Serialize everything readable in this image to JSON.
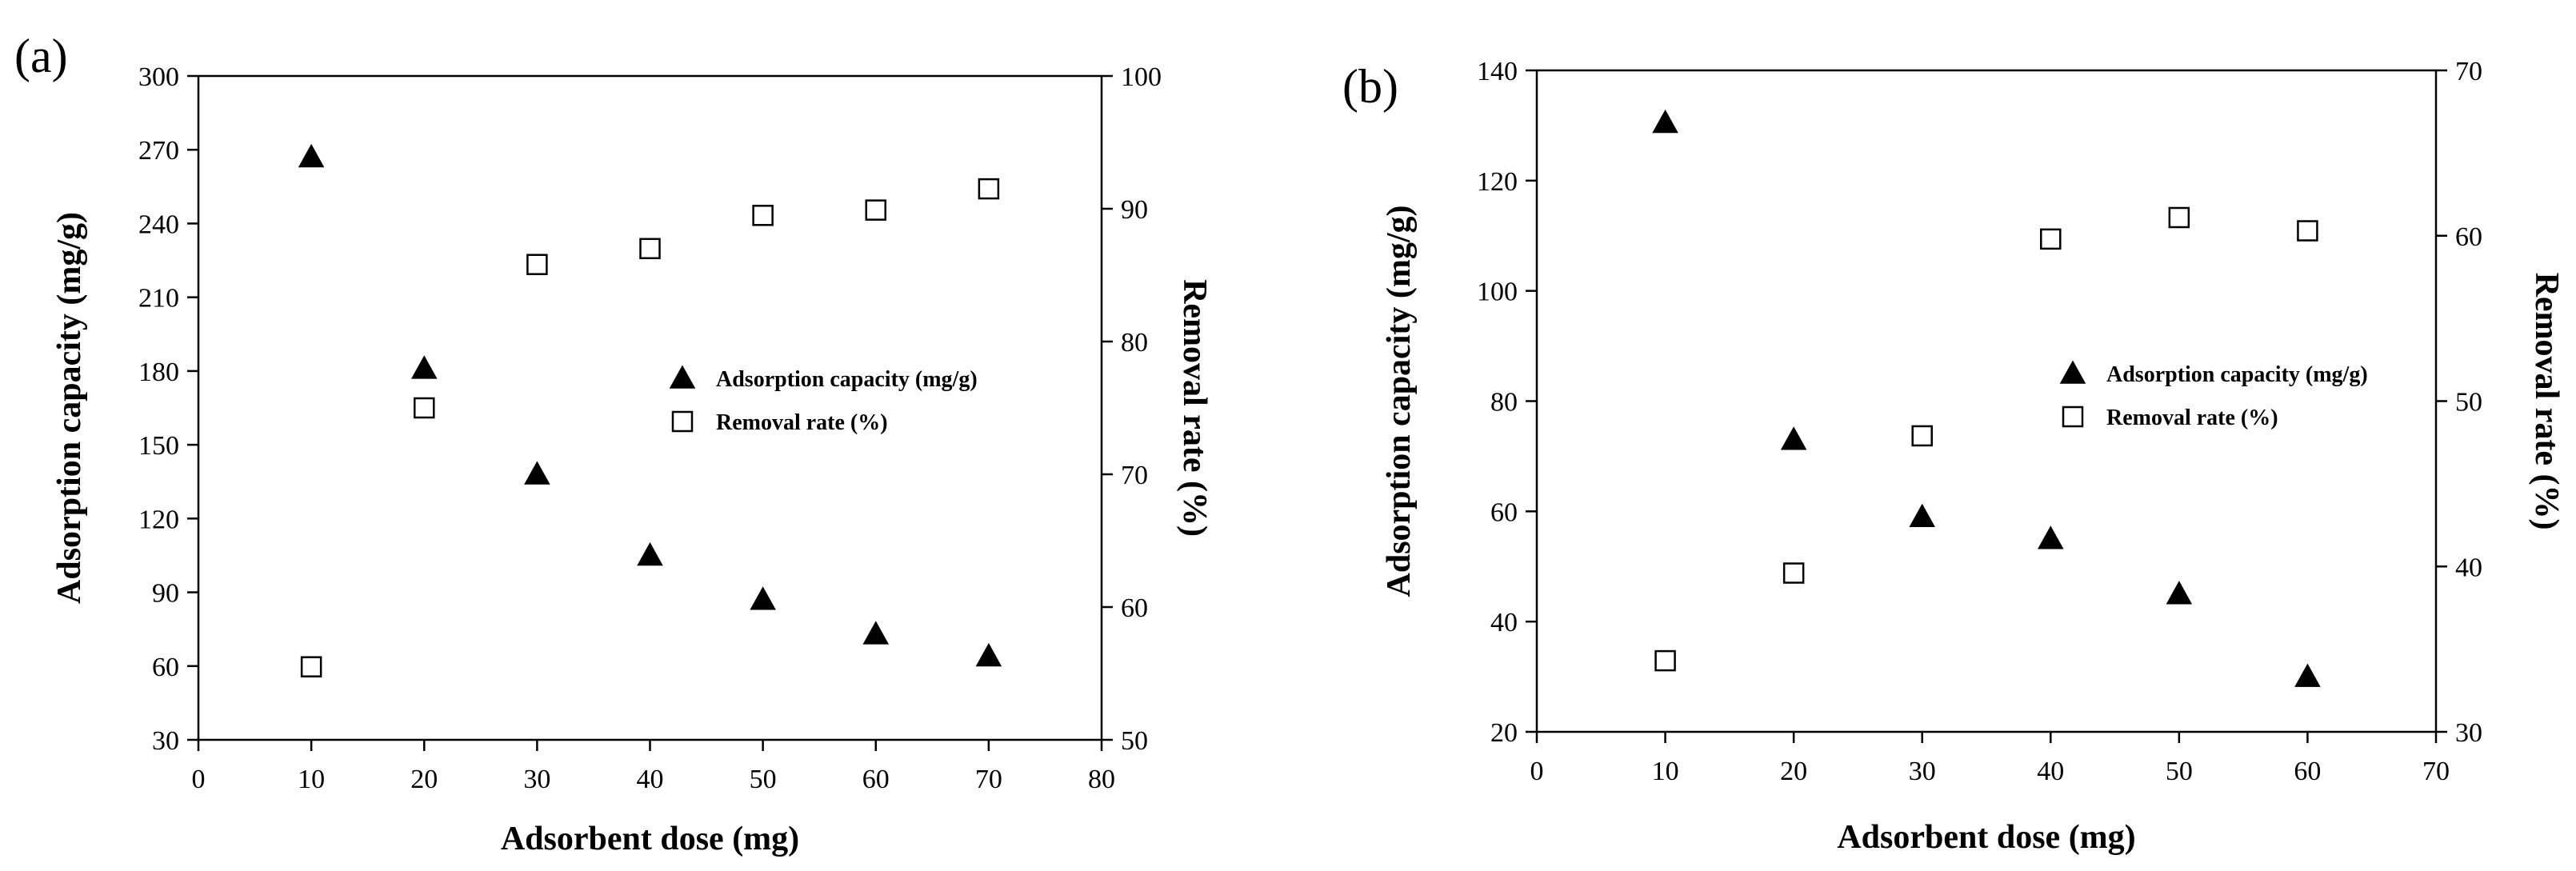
{
  "chart_data": [
    {
      "panel_label": "(a)",
      "type": "scatter",
      "xlabel": "Adsorbent dose (mg)",
      "ylabel_left": "Adsorption capacity (mg/g)",
      "ylabel_right": "Removal rate (%)",
      "xlim": [
        0,
        80
      ],
      "xticks": [
        "0",
        "10",
        "20",
        "30",
        "40",
        "50",
        "60",
        "70",
        "80"
      ],
      "ylim_left": [
        30,
        300
      ],
      "yticks_left": [
        "30",
        "60",
        "90",
        "120",
        "150",
        "180",
        "210",
        "240",
        "270",
        "300"
      ],
      "ylim_right": [
        50,
        100
      ],
      "yticks_right": [
        "50",
        "60",
        "70",
        "80",
        "90",
        "100"
      ],
      "legend_position": "center-right",
      "grid": false,
      "series": [
        {
          "name": "Adsorption capacity (mg/g)",
          "marker": "filled-triangle",
          "axis": "left",
          "x": [
            10,
            20,
            30,
            40,
            50,
            60,
            70
          ],
          "y": [
            267,
            181,
            138,
            105,
            87,
            73,
            64
          ]
        },
        {
          "name": "Removal rate (%)",
          "marker": "open-square",
          "axis": "right",
          "x": [
            10,
            20,
            30,
            40,
            50,
            60,
            70
          ],
          "y": [
            55.5,
            75,
            85.8,
            87,
            89.5,
            89.9,
            91.5
          ]
        }
      ]
    },
    {
      "panel_label": "(b)",
      "type": "scatter",
      "xlabel": "Adsorbent dose (mg)",
      "ylabel_left": "Adsorption capacity (mg/g)",
      "ylabel_right": "Removal rate (%)",
      "xlim": [
        0,
        70
      ],
      "xticks": [
        "0",
        "10",
        "20",
        "30",
        "40",
        "50",
        "60",
        "70"
      ],
      "ylim_left": [
        20,
        140
      ],
      "yticks_left": [
        "20",
        "40",
        "60",
        "80",
        "100",
        "120",
        "140"
      ],
      "ylim_right": [
        30,
        70
      ],
      "yticks_right": [
        "30",
        "40",
        "50",
        "60",
        "70"
      ],
      "legend_position": "center-right",
      "grid": false,
      "series": [
        {
          "name": "Adsorption capacity (mg/g)",
          "marker": "filled-triangle",
          "axis": "left",
          "x": [
            10,
            20,
            30,
            40,
            50,
            60
          ],
          "y": [
            130.5,
            73,
            59,
            55,
            45,
            30
          ]
        },
        {
          "name": "Removal rate (%)",
          "marker": "open-square",
          "axis": "right",
          "x": [
            10,
            20,
            30,
            40,
            50,
            60
          ],
          "y": [
            34.3,
            39.6,
            47.9,
            59.8,
            61.1,
            60.3
          ]
        }
      ]
    }
  ],
  "colors": {
    "ink": "#000000",
    "background": "#ffffff"
  }
}
